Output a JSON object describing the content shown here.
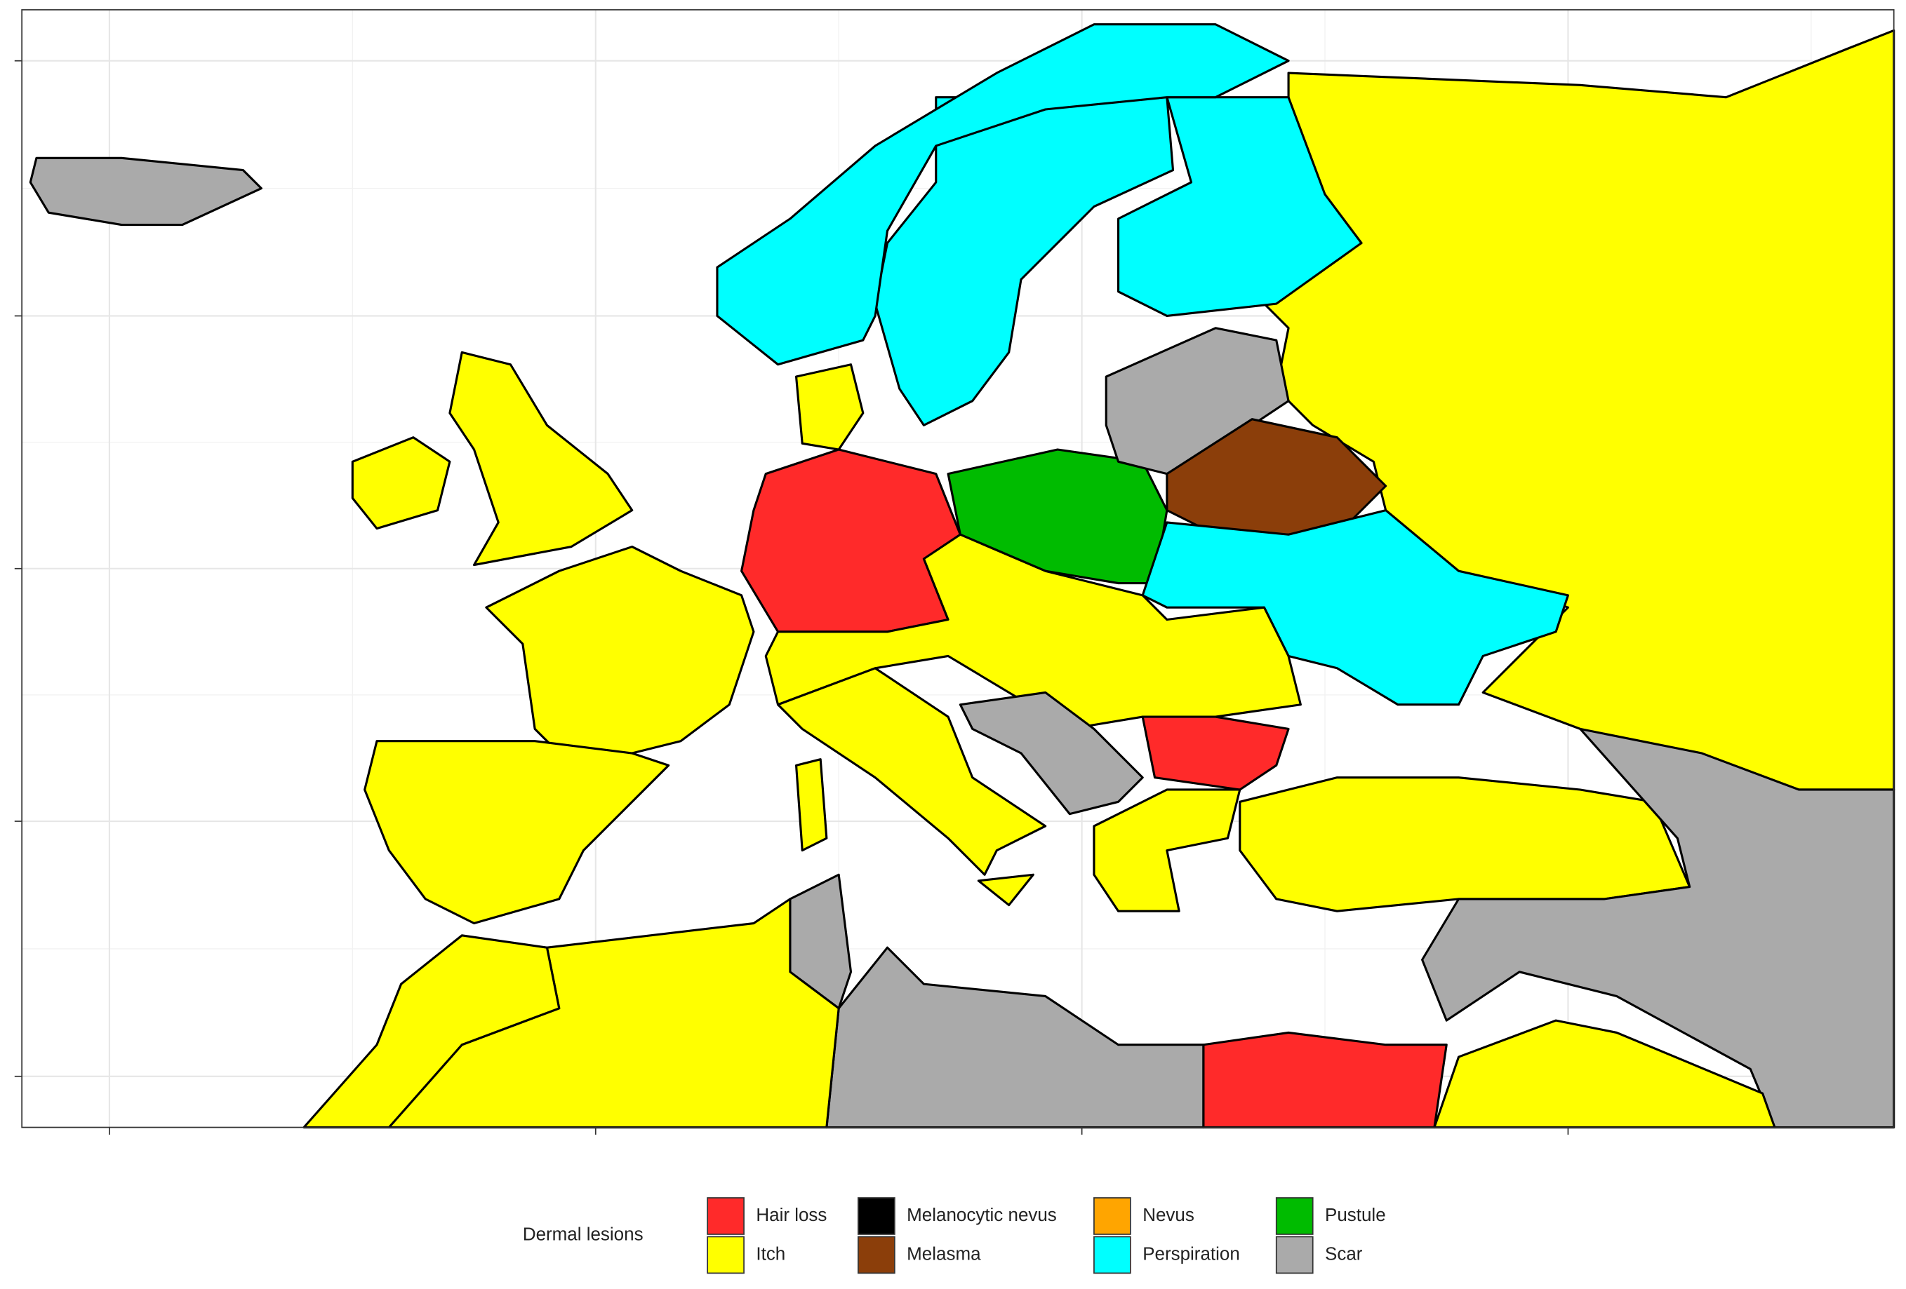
{
  "legend": {
    "title": "Dermal lesions",
    "items": [
      {
        "label": "Hair loss",
        "color": "#ff2a2a"
      },
      {
        "label": "Itch",
        "color": "#ffff00"
      },
      {
        "label": "Melanocytic nevus",
        "color": "#000000"
      },
      {
        "label": "Melasma",
        "color": "#8b3e0a"
      },
      {
        "label": "Nevus",
        "color": "#ffa500"
      },
      {
        "label": "Perspiration",
        "color": "#00ffff"
      },
      {
        "label": "Pustule",
        "color": "#00bb00"
      },
      {
        "label": "Scar",
        "color": "#aaaaaa"
      }
    ]
  }
}
